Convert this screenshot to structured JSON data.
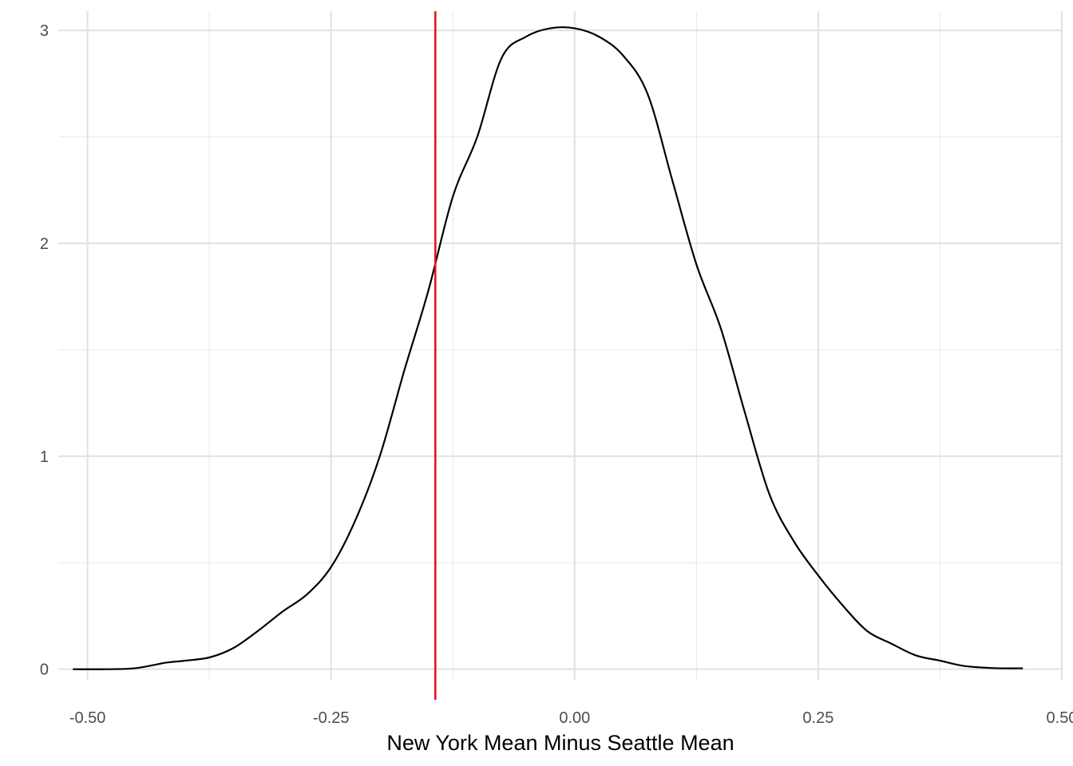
{
  "chart_data": {
    "type": "line",
    "title": "",
    "xlabel": "New York Mean Minus Seattle Mean",
    "ylabel": "",
    "xlim": [
      -0.53,
      0.5
    ],
    "ylim": [
      -0.05,
      3.09
    ],
    "x_ticks": [
      -0.5,
      -0.25,
      0.0,
      0.25,
      0.5
    ],
    "x_tick_labels": [
      "-0.50",
      "-0.25",
      "0.00",
      "0.25",
      "0.50"
    ],
    "y_ticks": [
      0,
      1,
      2,
      3
    ],
    "y_tick_labels": [
      "0",
      "1",
      "2",
      "3"
    ],
    "grid": true,
    "legend": "none",
    "series": [
      {
        "color": "#000000",
        "points": [
          [
            -0.515,
            0.0
          ],
          [
            -0.48,
            0.0
          ],
          [
            -0.45,
            0.005
          ],
          [
            -0.42,
            0.03
          ],
          [
            -0.4,
            0.04
          ],
          [
            -0.375,
            0.055
          ],
          [
            -0.35,
            0.1
          ],
          [
            -0.325,
            0.18
          ],
          [
            -0.3,
            0.27
          ],
          [
            -0.275,
            0.35
          ],
          [
            -0.25,
            0.48
          ],
          [
            -0.225,
            0.7
          ],
          [
            -0.2,
            1.0
          ],
          [
            -0.175,
            1.4
          ],
          [
            -0.15,
            1.78
          ],
          [
            -0.125,
            2.22
          ],
          [
            -0.1,
            2.5
          ],
          [
            -0.075,
            2.87
          ],
          [
            -0.05,
            2.97
          ],
          [
            -0.025,
            3.01
          ],
          [
            0.0,
            3.01
          ],
          [
            0.025,
            2.97
          ],
          [
            0.05,
            2.88
          ],
          [
            0.075,
            2.7
          ],
          [
            0.1,
            2.3
          ],
          [
            0.125,
            1.9
          ],
          [
            0.15,
            1.6
          ],
          [
            0.175,
            1.2
          ],
          [
            0.2,
            0.82
          ],
          [
            0.225,
            0.6
          ],
          [
            0.25,
            0.44
          ],
          [
            0.275,
            0.3
          ],
          [
            0.3,
            0.18
          ],
          [
            0.325,
            0.12
          ],
          [
            0.35,
            0.065
          ],
          [
            0.375,
            0.04
          ],
          [
            0.4,
            0.015
          ],
          [
            0.43,
            0.005
          ],
          [
            0.46,
            0.004
          ]
        ]
      }
    ],
    "vline": {
      "x": -0.143,
      "color": "#e8141c"
    }
  }
}
